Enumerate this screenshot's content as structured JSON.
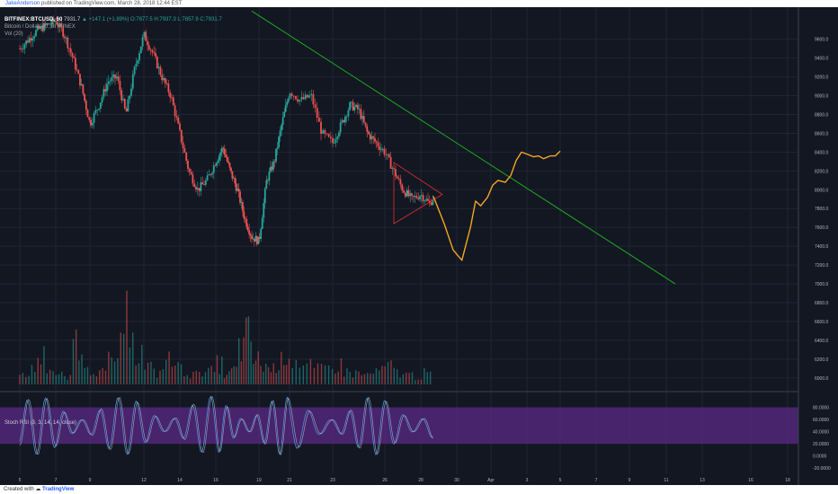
{
  "publish_bar": {
    "author": "JakeAnderson",
    "text": "published on TradingView.com, March 28, 2018 12:44 EST"
  },
  "legend": {
    "symbol": "BITFINEX:BTCUSD, 60",
    "last": "7931.7",
    "change": "▲ +147.1 (+1.89%)",
    "ohlc": "O:7877.5 H:7937.3 L:7857.9 C:7931.7",
    "title": "Bitcoin / Dollar, 60, BITFINEX",
    "volume": "Vol (20)"
  },
  "stoch_label": "Stoch RSI (3, 3, 14, 14, close)",
  "footer": {
    "created_with": "Created with",
    "brand": "TradingView"
  },
  "colors": {
    "background": "#131722",
    "up_candle": "#26a69a",
    "down_candle": "#ef5350",
    "trendline": "#1faa1f",
    "projection": "#f5a623",
    "triangle": "#e03030",
    "stoch_band": "#5b2a86"
  },
  "chart_data": [
    {
      "type": "candlestick",
      "y_axis": {
        "ylim": [
          5950,
          9750
        ],
        "ticks": [
          "9600.0",
          "9400.0",
          "9200.0",
          "9000.0",
          "8800.0",
          "8600.0",
          "8400.0",
          "8200.0",
          "8000.0",
          "7800.0",
          "7600.0",
          "7400.0",
          "7200.0",
          "7000.0",
          "6800.0",
          "6600.0",
          "6400.0",
          "6200.0",
          "6000.0"
        ]
      },
      "x_axis": {
        "ticks": [
          "5",
          "7",
          "9",
          "12",
          "14",
          "16",
          "19",
          "21",
          "23",
          "26",
          "28",
          "30",
          "Apr",
          "3",
          "5",
          "7",
          "9",
          "11",
          "13",
          "16",
          "18"
        ]
      },
      "price_path": {
        "x_day": [
          5,
          6,
          7,
          7.5,
          8,
          8.5,
          9,
          9.5,
          10,
          10.5,
          11,
          11.5,
          12,
          12.5,
          13,
          13.5,
          14,
          14.5,
          15,
          15.5,
          16,
          16.5,
          17,
          17.5,
          18,
          18.5,
          19,
          19.5,
          20,
          20.5,
          21,
          21.5,
          22,
          22.5,
          23,
          23.5,
          24,
          24.5,
          25,
          25.5,
          26,
          26.5,
          27,
          27.5,
          28,
          28.5,
          28.7
        ],
        "close": [
          9500,
          9700,
          9800,
          9650,
          9400,
          9100,
          8700,
          8900,
          9150,
          9200,
          8800,
          9300,
          9650,
          9450,
          9200,
          9000,
          8600,
          8200,
          8000,
          8100,
          8300,
          8450,
          8200,
          8000,
          7700,
          7500,
          7450,
          8100,
          8300,
          8700,
          9050,
          8950,
          9000,
          8600,
          8500,
          8700,
          8900,
          8850,
          8600,
          8500,
          8400,
          8200,
          8000,
          7900,
          7950,
          7850,
          7930
        ]
      },
      "projection": {
        "x_day": [
          28.7,
          29.3,
          29.8,
          30.3,
          30.8,
          31.1,
          31.4,
          31.8,
          32.1,
          32.4,
          32.8,
          33.1,
          33.4,
          33.7,
          34.0,
          34.4,
          34.7,
          35.0,
          35.4,
          35.7,
          36.0
        ],
        "price": [
          7930,
          7640,
          7360,
          7250,
          7600,
          7880,
          7830,
          7920,
          8050,
          8100,
          8080,
          8150,
          8310,
          8400,
          8380,
          8350,
          8360,
          8330,
          8360,
          8360,
          8410
        ]
      },
      "trendline": {
        "x_day": [
          18.5,
          42.5
        ],
        "price": [
          9900,
          7000
        ]
      },
      "triangle": {
        "x_day": [
          26.5,
          29.2,
          26.5
        ],
        "price": [
          8290,
          7950,
          7640
        ]
      }
    },
    {
      "type": "bar",
      "name": "Vol (20)",
      "values": [
        10,
        18,
        35,
        22,
        12,
        8,
        60,
        30,
        20,
        15,
        28,
        44,
        88,
        40,
        22,
        14,
        30,
        26,
        18,
        12,
        20,
        16,
        25,
        12,
        18,
        46,
        60,
        30,
        24,
        20,
        28,
        40,
        30,
        22,
        18,
        20,
        24,
        16,
        14,
        12,
        14,
        18,
        22,
        15,
        12,
        10,
        14
      ]
    },
    {
      "type": "line",
      "name": "Stoch RSI (3, 3, 14, 14, close)",
      "ylim": [
        -30,
        100
      ],
      "band": [
        20,
        80
      ],
      "ticks": [
        "80.0000",
        "60.0000",
        "40.0000",
        "20.0000",
        "0.0000",
        "-20.0000"
      ]
    }
  ]
}
